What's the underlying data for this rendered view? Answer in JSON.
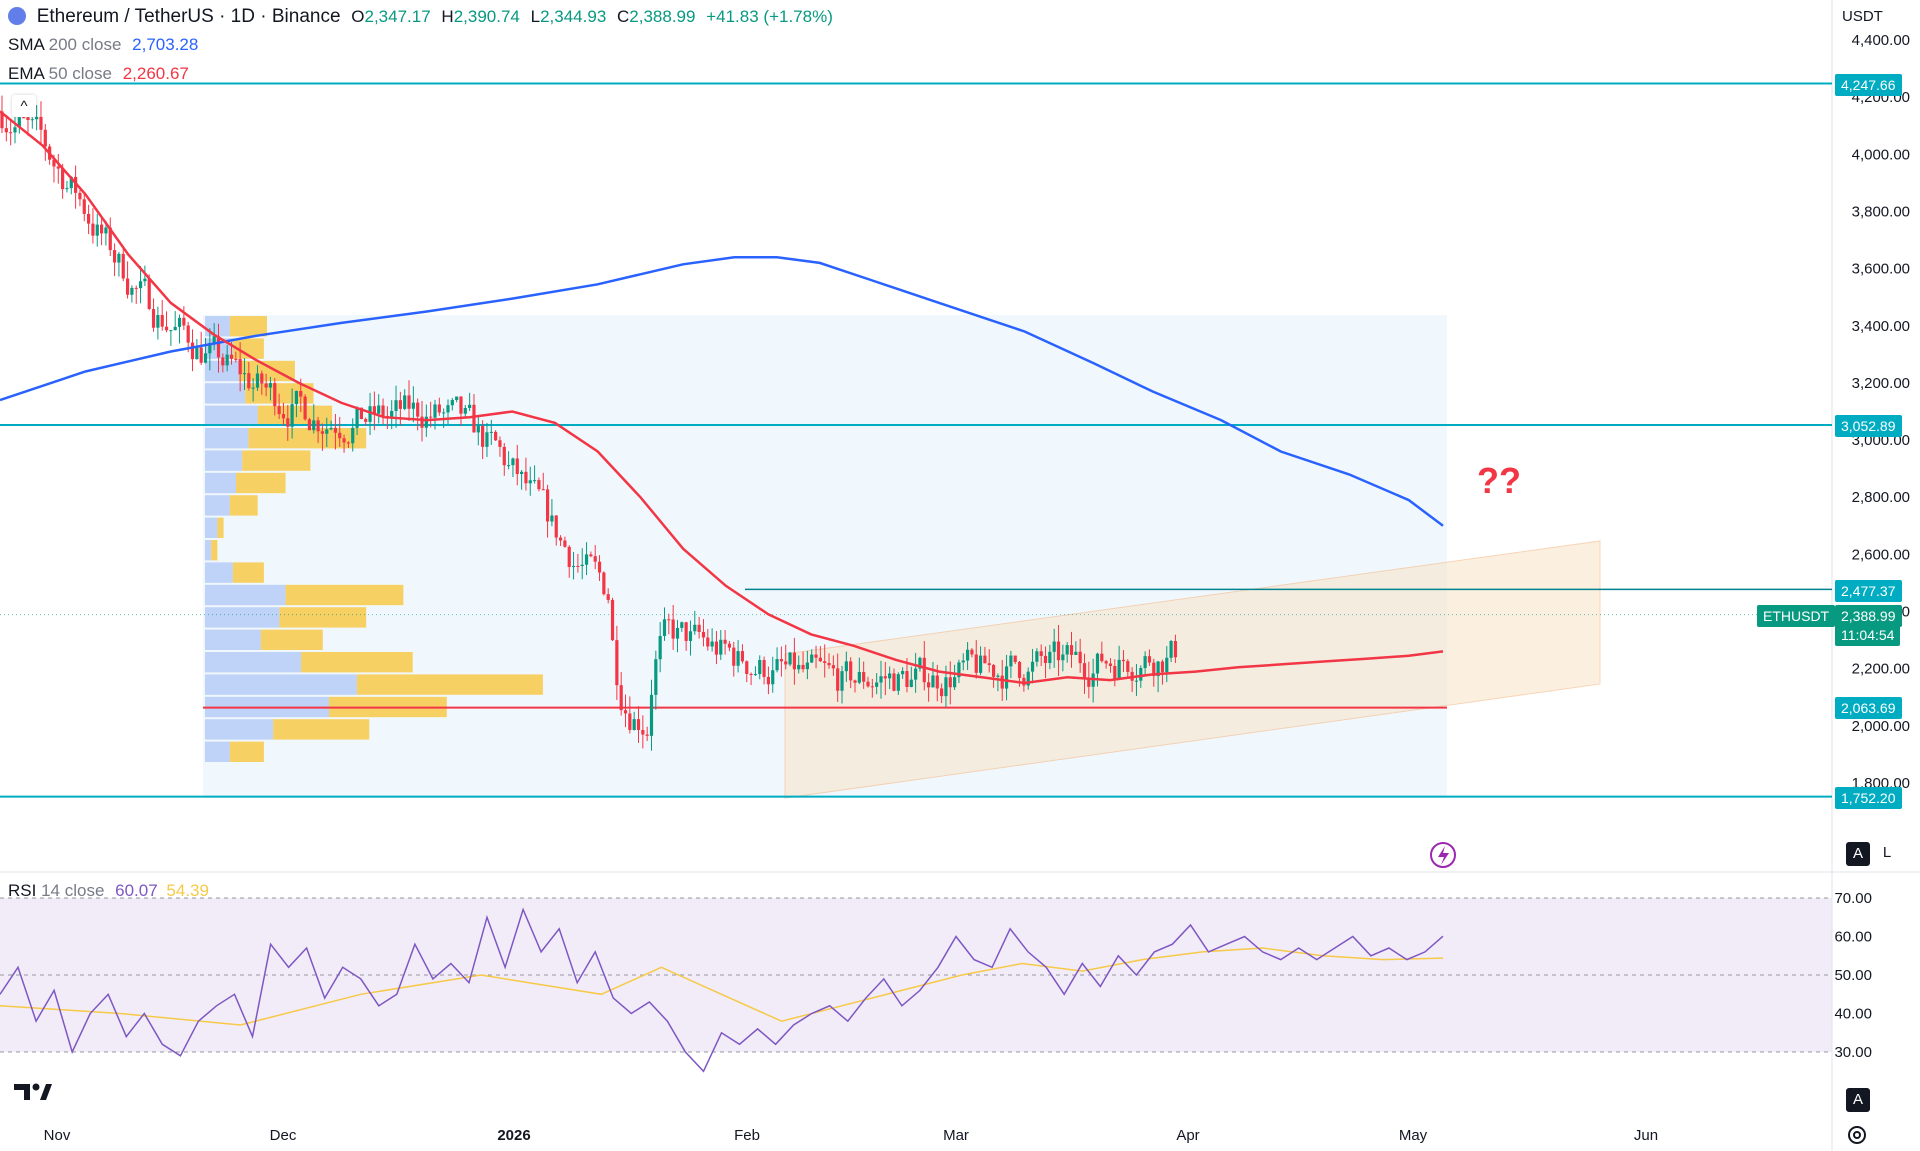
{
  "header": {
    "symbol": "Ethereum / TetherUS · 1D · Binance",
    "o_label": "O",
    "o": "2,347.17",
    "h_label": "H",
    "h": "2,390.74",
    "l_label": "L",
    "l": "2,344.93",
    "c_label": "C",
    "c": "2,388.99",
    "change": "+41.83 (+1.78%)",
    "sma_label": "SMA",
    "sma_params": "200 close",
    "sma_value": "2,703.28",
    "ema_label": "EMA",
    "ema_params": "50 close",
    "ema_value": "2,260.67",
    "rsi_label": "RSI",
    "rsi_params": "14 close",
    "rsi_value": "60.07",
    "rsi_ma_value": "54.39"
  },
  "currency": "USDT",
  "annotation": "??",
  "tags": {
    "level_4247": "4,247.66",
    "level_3052": "3,052.89",
    "level_2477": "2,477.37",
    "ticker": "ETHUSDT",
    "price": "2,388.99",
    "countdown": "11:04:54",
    "level_2063": "2,063.69",
    "level_1752": "1,752.20"
  },
  "buttons": {
    "auto": "A",
    "log": "L",
    "collapse": "^"
  },
  "colors": {
    "up": "#089981",
    "down": "#f23645",
    "sma": "#2962ff",
    "ema": "#f23645",
    "rsi": "#7e57c2",
    "rsi_ma": "#f7c948",
    "level": "#00acc1",
    "poc": "#f23645"
  },
  "chart_data": [
    {
      "type": "candlestick",
      "title": "Ethereum / TetherUS · 1D · Binance",
      "x_labels": [
        "Nov",
        "Dec",
        "2026",
        "Feb",
        "Mar",
        "Apr",
        "May",
        "Jun"
      ],
      "y_ticks": [
        "4,400.00",
        "4,200.00",
        "4,000.00",
        "3,800.00",
        "3,600.00",
        "3,400.00",
        "3,200.00",
        "3,000.00",
        "2,800.00",
        "2,600.00",
        "2,400.00",
        "2,200.00",
        "2,000.00",
        "1,800.00"
      ],
      "ylim": [
        1700,
        4440
      ],
      "horizontal_levels": [
        4247.66,
        3052.89,
        2477.37,
        2063.69,
        1752.2
      ],
      "last_price": 2388.99,
      "series": [
        {
          "name": "SMA 200 close",
          "values": [
            [
              0,
              3140
            ],
            [
              20,
              3240
            ],
            [
              40,
              3310
            ],
            [
              60,
              3365
            ],
            [
              80,
              3410
            ],
            [
              100,
              3450
            ],
            [
              120,
              3495
            ],
            [
              140,
              3545
            ],
            [
              150,
              3580
            ],
            [
              160,
              3615
            ],
            [
              172,
              3640
            ],
            [
              182,
              3640
            ],
            [
              192,
              3620
            ],
            [
              204,
              3560
            ],
            [
              220,
              3480
            ],
            [
              240,
              3380
            ],
            [
              256,
              3270
            ],
            [
              270,
              3170
            ],
            [
              286,
              3070
            ],
            [
              300,
              2960
            ],
            [
              316,
              2880
            ],
            [
              330,
              2790
            ],
            [
              338,
              2700
            ]
          ]
        },
        {
          "name": "EMA 50 close",
          "values": [
            [
              0,
              4150
            ],
            [
              10,
              4030
            ],
            [
              20,
              3860
            ],
            [
              30,
              3650
            ],
            [
              40,
              3480
            ],
            [
              50,
              3370
            ],
            [
              60,
              3280
            ],
            [
              70,
              3200
            ],
            [
              80,
              3130
            ],
            [
              90,
              3080
            ],
            [
              100,
              3070
            ],
            [
              110,
              3080
            ],
            [
              120,
              3100
            ],
            [
              130,
              3060
            ],
            [
              140,
              2960
            ],
            [
              150,
              2800
            ],
            [
              160,
              2620
            ],
            [
              170,
              2490
            ],
            [
              180,
              2390
            ],
            [
              190,
              2320
            ],
            [
              200,
              2280
            ],
            [
              210,
              2230
            ],
            [
              220,
              2190
            ],
            [
              230,
              2170
            ],
            [
              240,
              2150
            ],
            [
              250,
              2170
            ],
            [
              260,
              2160
            ],
            [
              270,
              2180
            ],
            [
              280,
              2190
            ],
            [
              290,
              2205
            ],
            [
              300,
              2215
            ],
            [
              310,
              2225
            ],
            [
              320,
              2235
            ],
            [
              330,
              2245
            ],
            [
              338,
              2260.67
            ]
          ]
        },
        {
          "name": "RSI 14 close",
          "values": [
            [
              0,
              45
            ],
            [
              3,
              52
            ],
            [
              6,
              38
            ],
            [
              9,
              46
            ],
            [
              12,
              30
            ],
            [
              15,
              40
            ],
            [
              18,
              45
            ],
            [
              21,
              34
            ],
            [
              24,
              40
            ],
            [
              27,
              32
            ],
            [
              30,
              29
            ],
            [
              33,
              38
            ],
            [
              36,
              42
            ],
            [
              39,
              45
            ],
            [
              42,
              34
            ],
            [
              45,
              58
            ],
            [
              48,
              52
            ],
            [
              51,
              57
            ],
            [
              54,
              44
            ],
            [
              57,
              52
            ],
            [
              60,
              49
            ],
            [
              63,
              42
            ],
            [
              66,
              45
            ],
            [
              69,
              58
            ],
            [
              72,
              49
            ],
            [
              75,
              53
            ],
            [
              78,
              48
            ],
            [
              81,
              65
            ],
            [
              84,
              52
            ],
            [
              87,
              67
            ],
            [
              90,
              56
            ],
            [
              93,
              62
            ],
            [
              96,
              48
            ],
            [
              99,
              56
            ],
            [
              102,
              44
            ],
            [
              105,
              40
            ],
            [
              108,
              43
            ],
            [
              111,
              38
            ],
            [
              114,
              30
            ],
            [
              117,
              25
            ],
            [
              120,
              35
            ],
            [
              123,
              32
            ],
            [
              126,
              36
            ],
            [
              129,
              32
            ],
            [
              132,
              37
            ],
            [
              135,
              40
            ],
            [
              138,
              42
            ],
            [
              141,
              38
            ],
            [
              144,
              44
            ],
            [
              147,
              49
            ],
            [
              150,
              42
            ],
            [
              153,
              46
            ],
            [
              156,
              52
            ],
            [
              159,
              60
            ],
            [
              162,
              54
            ],
            [
              165,
              52
            ],
            [
              168,
              62
            ],
            [
              171,
              56
            ],
            [
              174,
              52
            ],
            [
              177,
              45
            ],
            [
              180,
              53
            ],
            [
              183,
              47
            ],
            [
              186,
              55
            ],
            [
              189,
              50
            ],
            [
              192,
              56
            ],
            [
              195,
              58
            ],
            [
              198,
              63
            ],
            [
              201,
              56
            ],
            [
              204,
              58
            ],
            [
              207,
              60
            ],
            [
              210,
              56
            ],
            [
              213,
              54
            ],
            [
              216,
              57
            ],
            [
              219,
              54
            ],
            [
              222,
              57
            ],
            [
              225,
              60
            ],
            [
              228,
              55
            ],
            [
              231,
              57
            ],
            [
              234,
              54
            ],
            [
              237,
              56
            ],
            [
              240,
              60.07
            ]
          ]
        },
        {
          "name": "RSI MA",
          "values": [
            [
              0,
              42
            ],
            [
              20,
              40
            ],
            [
              40,
              37
            ],
            [
              60,
              45
            ],
            [
              80,
              50
            ],
            [
              100,
              45
            ],
            [
              110,
              52
            ],
            [
              120,
              45
            ],
            [
              130,
              38
            ],
            [
              140,
              42
            ],
            [
              150,
              46
            ],
            [
              160,
              50
            ],
            [
              170,
              53
            ],
            [
              180,
              51
            ],
            [
              190,
              54
            ],
            [
              200,
              56
            ],
            [
              210,
              57
            ],
            [
              220,
              55
            ],
            [
              230,
              54
            ],
            [
              240,
              54.39
            ]
          ]
        }
      ],
      "volume_profile_bars": [
        {
          "buy": 8,
          "sell": 12
        },
        {
          "buy": 9,
          "sell": 10
        },
        {
          "buy": 11,
          "sell": 18
        },
        {
          "buy": 13,
          "sell": 22
        },
        {
          "buy": 17,
          "sell": 24
        },
        {
          "buy": 14,
          "sell": 38
        },
        {
          "buy": 12,
          "sell": 22
        },
        {
          "buy": 10,
          "sell": 16
        },
        {
          "buy": 8,
          "sell": 9
        },
        {
          "buy": 4,
          "sell": 2
        },
        {
          "buy": 2,
          "sell": 2
        },
        {
          "buy": 9,
          "sell": 10
        },
        {
          "buy": 26,
          "sell": 38
        },
        {
          "buy": 24,
          "sell": 28
        },
        {
          "buy": 18,
          "sell": 20
        },
        {
          "buy": 31,
          "sell": 36
        },
        {
          "buy": 49,
          "sell": 60
        },
        {
          "buy": 40,
          "sell": 38
        },
        {
          "buy": 22,
          "sell": 31
        },
        {
          "buy": 8,
          "sell": 11
        }
      ]
    },
    {
      "type": "line",
      "title": "RSI 14 close",
      "y_ticks": [
        "70.00",
        "60.00",
        "50.00",
        "40.00",
        "30.00"
      ],
      "ylim": [
        20,
        73
      ]
    }
  ]
}
